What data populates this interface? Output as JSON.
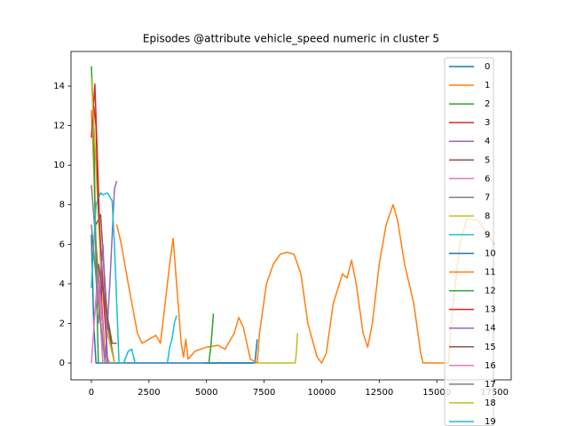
{
  "chart_data": {
    "type": "line",
    "title": "Episodes @attribute vehicle_speed numeric in cluster 5",
    "xlim": [
      -886,
      18230
    ],
    "ylim": [
      -0.85,
      15.75
    ],
    "xticks": [
      0,
      2500,
      5000,
      7500,
      10000,
      12500,
      15000,
      17500
    ],
    "yticks": [
      0,
      2,
      4,
      6,
      8,
      10,
      12,
      14
    ],
    "series": [
      {
        "name": "0",
        "color": "#1f77b4",
        "x": [
          0,
          100,
          200,
          3000,
          7000
        ],
        "values": [
          6.5,
          2,
          0,
          0,
          0
        ]
      },
      {
        "name": "1",
        "color": "#ff7f0e",
        "x": [
          0,
          100,
          200,
          400,
          600,
          800
        ],
        "values": [
          12.8,
          10,
          6,
          3,
          0.5,
          0
        ]
      },
      {
        "name": "2",
        "color": "#2ca02c",
        "x": [
          0,
          100,
          200,
          300
        ],
        "values": [
          15,
          12,
          5,
          0
        ]
      },
      {
        "name": "3",
        "color": "#d62728",
        "x": [
          0,
          150,
          300,
          450,
          600
        ],
        "values": [
          11.4,
          14.1,
          9,
          3,
          0
        ]
      },
      {
        "name": "4",
        "color": "#9467bd",
        "x": [
          600,
          800,
          1000,
          1100
        ],
        "values": [
          0,
          4,
          8.8,
          9.2
        ]
      },
      {
        "name": "5",
        "color": "#8c564b",
        "x": [
          200,
          400,
          700,
          1000
        ],
        "values": [
          7,
          7.5,
          2,
          0
        ]
      },
      {
        "name": "6",
        "color": "#e377c2",
        "x": [
          0,
          300,
          600
        ],
        "values": [
          0,
          5,
          0
        ]
      },
      {
        "name": "7",
        "color": "#7f7f7f",
        "x": [
          0,
          200,
          500
        ],
        "values": [
          9,
          6,
          0
        ]
      },
      {
        "name": "8",
        "color": "#bcbd22",
        "x": [
          0,
          200,
          400,
          600,
          1000
        ],
        "values": [
          14.4,
          10,
          5,
          2,
          0
        ]
      },
      {
        "name": "9",
        "color": "#17becf",
        "x": [
          0,
          200,
          400,
          500,
          700,
          900,
          1000,
          1200,
          1400,
          1600,
          1750,
          1900
        ],
        "values": [
          3.8,
          8,
          8.6,
          8.5,
          8.6,
          8.2,
          6,
          0,
          0,
          0.6,
          0.7,
          0
        ]
      },
      {
        "name": "10",
        "color": "#1f77b4",
        "x": [
          4900,
          5000,
          7100,
          7200
        ],
        "values": [
          0,
          0,
          0,
          1.2
        ]
      },
      {
        "name": "11",
        "color": "#ff7f0e",
        "x": [
          1100,
          1300,
          1600,
          2000,
          2200,
          2500,
          2800,
          3000,
          3200,
          3400,
          3550,
          3700,
          3900,
          4000,
          4100,
          4200,
          4500,
          5000,
          5500,
          5800,
          6200,
          6400,
          6600,
          6900,
          7200,
          7300,
          7600,
          7900,
          8200,
          8500,
          8800,
          9100,
          9400,
          9800,
          10000,
          10200,
          10500,
          10900,
          11100,
          11300,
          11500,
          11800,
          12000,
          12200,
          12500,
          12800,
          13100,
          13300,
          13600,
          14000,
          14300,
          14400,
          15500,
          15700,
          16000,
          16300,
          16800,
          17500
        ],
        "values": [
          7,
          6,
          4,
          1.5,
          1,
          1.2,
          1.4,
          1,
          3,
          5,
          6.3,
          4,
          1,
          0.3,
          1.2,
          0.2,
          0.6,
          0.8,
          0.9,
          0.7,
          1.5,
          2.3,
          1.8,
          0.2,
          0,
          1.5,
          4,
          5,
          5.5,
          5.6,
          5.5,
          4.5,
          2,
          0.3,
          0,
          0.5,
          3,
          4.5,
          4.3,
          5.2,
          4,
          1.5,
          0.8,
          2,
          5,
          7,
          8,
          7.2,
          5,
          3,
          0.5,
          0,
          0,
          3,
          6,
          7.3,
          7.2,
          6
        ]
      },
      {
        "name": "12",
        "color": "#2ca02c",
        "x": [
          5100,
          5200,
          5300
        ],
        "values": [
          0,
          1,
          2.5
        ]
      },
      {
        "name": "13",
        "color": "#d62728",
        "x": [
          100,
          200,
          300,
          500,
          700
        ],
        "values": [
          13,
          12,
          8,
          4,
          0
        ]
      },
      {
        "name": "14",
        "color": "#9467bd",
        "x": [
          300,
          500,
          700
        ],
        "values": [
          2,
          6,
          0
        ]
      },
      {
        "name": "15",
        "color": "#8c564b",
        "x": [
          300,
          600,
          900,
          1100
        ],
        "values": [
          5,
          3,
          1,
          1
        ]
      },
      {
        "name": "16",
        "color": "#e377c2",
        "x": [
          100,
          300,
          500
        ],
        "values": [
          2,
          4,
          0
        ]
      },
      {
        "name": "17",
        "color": "#7f7f7f",
        "x": [
          0,
          300,
          600
        ],
        "values": [
          7,
          3,
          0
        ]
      },
      {
        "name": "18",
        "color": "#bcbd22",
        "x": [
          7200,
          8850,
          8900,
          8950
        ],
        "values": [
          0,
          0,
          0.5,
          1.5
        ]
      },
      {
        "name": "19",
        "color": "#17becf",
        "x": [
          3300,
          3400,
          3500,
          3600,
          3700
        ],
        "values": [
          0,
          0.8,
          1.2,
          2,
          2.4
        ]
      }
    ]
  }
}
